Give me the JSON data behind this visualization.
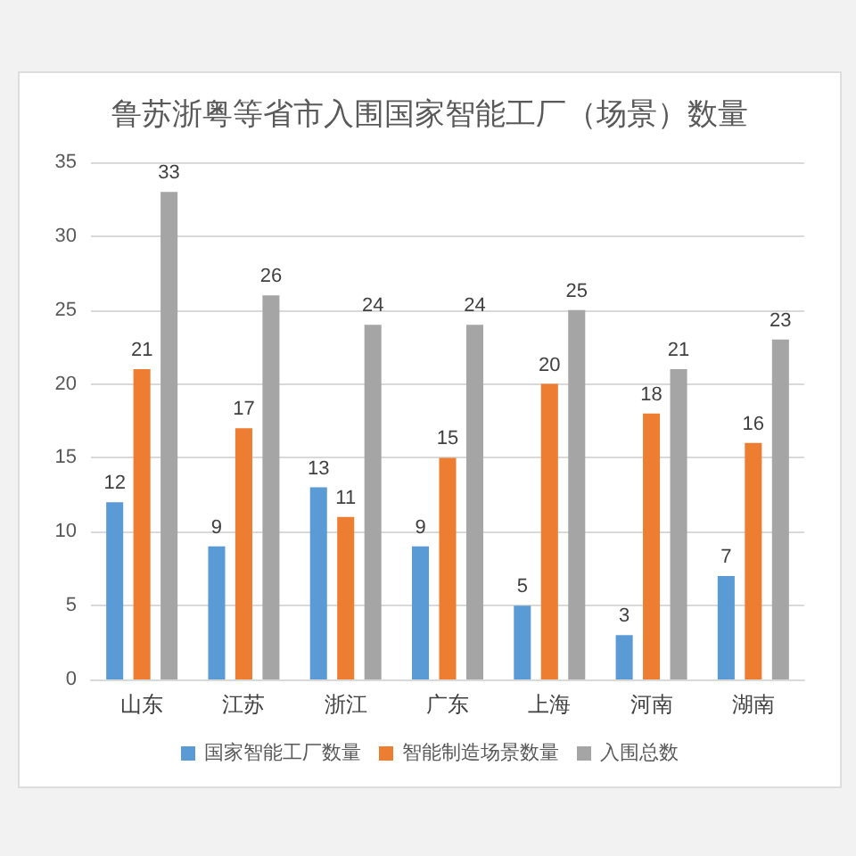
{
  "chart_data": {
    "type": "bar",
    "title": "鲁苏浙粤等省市入围国家智能工厂（场景）数量",
    "categories": [
      "山东",
      "江苏",
      "浙江",
      "广东",
      "上海",
      "河南",
      "湖南"
    ],
    "series": [
      {
        "name": "国家智能工厂数量",
        "color": "#5b9bd5",
        "values": [
          12,
          9,
          13,
          9,
          5,
          3,
          7
        ]
      },
      {
        "name": "智能制造场景数量",
        "color": "#ed7d31",
        "values": [
          21,
          17,
          11,
          15,
          20,
          18,
          16
        ]
      },
      {
        "name": "入围总数",
        "color": "#a5a5a5",
        "values": [
          33,
          26,
          24,
          24,
          25,
          21,
          23
        ]
      }
    ],
    "ylim": [
      0,
      35
    ],
    "yticks": [
      0,
      5,
      10,
      15,
      20,
      25,
      30,
      35
    ],
    "grid": "y",
    "legend": "bottom",
    "data_labels": true
  }
}
